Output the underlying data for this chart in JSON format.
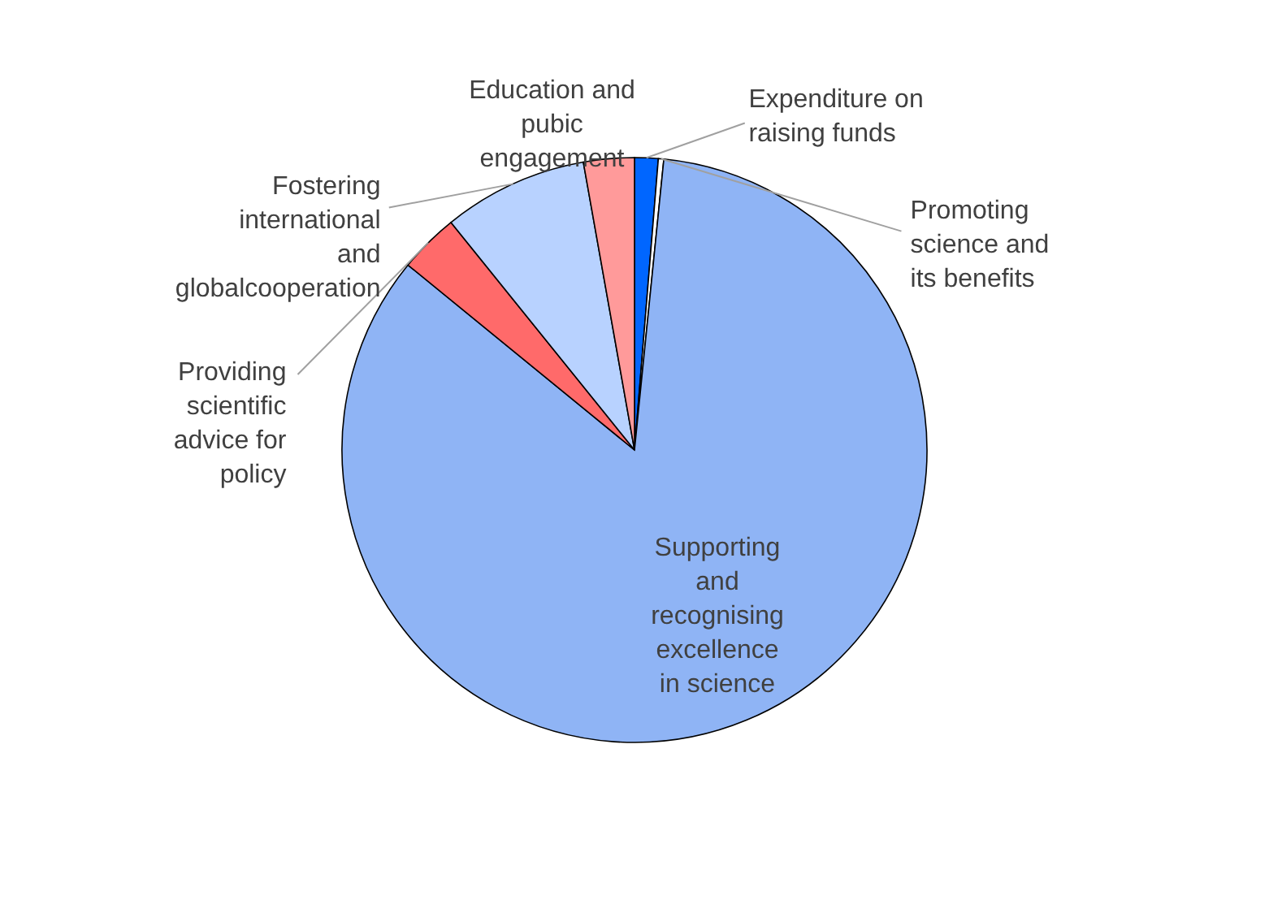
{
  "chart_data": {
    "type": "pie",
    "categories": [
      "Expenditure on raising funds",
      "Promoting science and its benefits",
      "Supporting and recognising excellence in science",
      "Providing scientific advice for policy",
      "Fostering international and globalcooperation",
      "Education and pubic engagement"
    ],
    "values": [
      1.3,
      0.3,
      84.3,
      3.3,
      8.0,
      2.8
    ],
    "colors": [
      "#0066ff",
      "#ffffff",
      "#8fb4f5",
      "#ff6a6a",
      "#b8d2ff",
      "#ff9a9a"
    ]
  }
}
